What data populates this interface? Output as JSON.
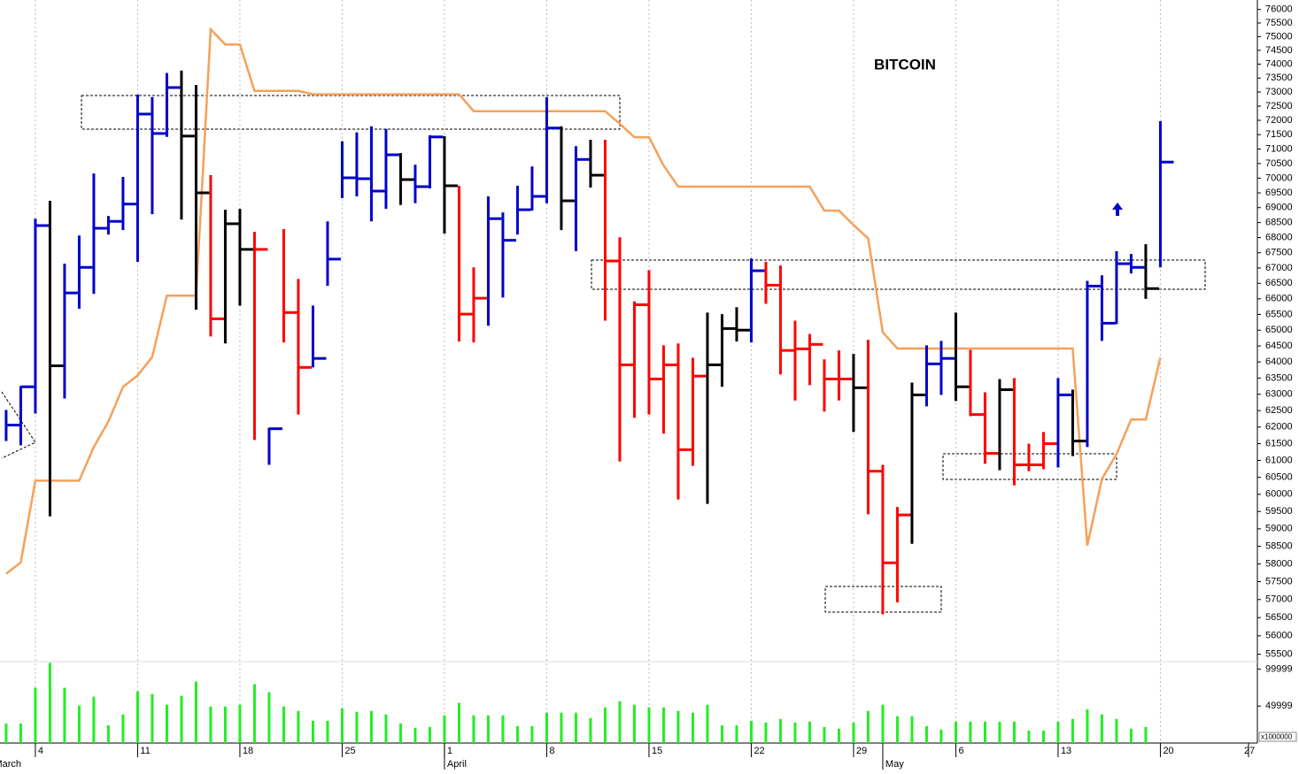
{
  "chart_data": {
    "type": "ohlc",
    "title": "BITCOIN",
    "log_y": true,
    "ylim": [
      55300,
      76350
    ],
    "yticks": [
      55500,
      56000,
      56500,
      57000,
      57500,
      58000,
      58500,
      59000,
      59500,
      60000,
      60500,
      61000,
      61500,
      62000,
      62500,
      63000,
      63500,
      64000,
      64500,
      65000,
      65500,
      66000,
      66500,
      67000,
      67500,
      68000,
      68500,
      69000,
      69500,
      70000,
      70500,
      71000,
      71500,
      72000,
      72500,
      73000,
      73500,
      74000,
      74500,
      75000,
      75500,
      76000
    ],
    "xlim": [
      -0.42,
      85.64
    ],
    "xticks": [
      {
        "value": 2,
        "label": "4"
      },
      {
        "value": 9,
        "label": "11"
      },
      {
        "value": 16,
        "label": "18"
      },
      {
        "value": 23,
        "label": "25"
      },
      {
        "value": 30,
        "label": "1"
      },
      {
        "value": 37,
        "label": "8"
      },
      {
        "value": 44,
        "label": "15"
      },
      {
        "value": 51,
        "label": "22"
      },
      {
        "value": 58,
        "label": "29"
      },
      {
        "value": 65,
        "label": "6"
      },
      {
        "value": 72,
        "label": "13"
      },
      {
        "value": 79,
        "label": "20"
      },
      {
        "value": 86,
        "label": "27"
      }
    ],
    "month_ticks": [
      {
        "value": -1,
        "label": "March"
      },
      {
        "value": 30,
        "label": "April"
      },
      {
        "value": 60,
        "label": "May"
      }
    ],
    "grid_x": true,
    "high": [
      62520,
      63250,
      68630,
      69230,
      67140,
      68070,
      70160,
      68720,
      70040,
      72910,
      72820,
      73680,
      73770,
      73250,
      70100,
      68930,
      68960,
      68190,
      61980,
      68280,
      66640,
      65780,
      68540,
      71270,
      71580,
      71790,
      71700,
      70860,
      70460,
      71480,
      71450,
      69740,
      67020,
      69380,
      68840,
      69740,
      70400,
      72820,
      71790,
      71100,
      71320,
      71320,
      68010,
      65920,
      66930,
      64520,
      64580,
      64130,
      65560,
      65510,
      65730,
      67310,
      67200,
      67080,
      65300,
      64880,
      64080,
      64360,
      64250,
      64690,
      60870,
      59630,
      63360,
      64520,
      64660,
      65560,
      64380,
      63060,
      63470,
      63500,
      61500,
      61850,
      63500,
      63140,
      66580,
      66760,
      67550,
      67460,
      67780,
      71970
    ],
    "low": [
      61580,
      61450,
      62410,
      59360,
      62870,
      65680,
      66160,
      68100,
      68250,
      67200,
      68780,
      71420,
      68600,
      65650,
      64800,
      64580,
      65780,
      61610,
      60870,
      64610,
      62380,
      63830,
      66420,
      69320,
      69380,
      68540,
      68960,
      69090,
      69150,
      69650,
      68130,
      64640,
      64610,
      65140,
      66040,
      68100,
      68900,
      69150,
      68250,
      67550,
      69680,
      65300,
      60970,
      62280,
      62380,
      61800,
      59850,
      60840,
      59720,
      63230,
      64640,
      64610,
      65840,
      63610,
      62810,
      63280,
      62470,
      62810,
      61850,
      59420,
      56590,
      56920,
      58570,
      62630,
      62980,
      62790,
      62330,
      60900,
      60710,
      60260,
      60680,
      60740,
      60790,
      61130,
      61400,
      64660,
      65190,
      66820,
      66000,
      67020
    ],
    "close": [
      62060,
      63230,
      68400,
      63880,
      66190,
      67020,
      68310,
      68540,
      69120,
      72220,
      71540,
      73160,
      71450,
      69500,
      65360,
      68460,
      67610,
      67610,
      61950,
      65560,
      63830,
      64110,
      67290,
      70010,
      69980,
      69560,
      70800,
      69950,
      69710,
      71420,
      69740,
      65510,
      66020,
      68630,
      67910,
      68930,
      69380,
      71730,
      69230,
      70640,
      70100,
      67230,
      63910,
      65810,
      63470,
      63910,
      61320,
      63560,
      63910,
      65050,
      65000,
      66910,
      66440,
      64360,
      64410,
      64550,
      63470,
      63470,
      63200,
      60680,
      58030,
      59400,
      62980,
      63940,
      64110,
      63230,
      62380,
      61210,
      63140,
      60870,
      60870,
      61500,
      62980,
      61580,
      66410,
      65220,
      67140,
      67020,
      66330,
      70550
    ],
    "colors": [
      "#0000cc",
      "#0000cc",
      "#0000cc",
      "#000000",
      "#0000cc",
      "#0000cc",
      "#0000cc",
      "#0000cc",
      "#0000cc",
      "#0000cc",
      "#0000cc",
      "#0000cc",
      "#000000",
      "#000000",
      "#ff0000",
      "#000000",
      "#000000",
      "#ff0000",
      "#0000cc",
      "#ff0000",
      "#ff0000",
      "#0000cc",
      "#0000cc",
      "#0000cc",
      "#0000cc",
      "#0000cc",
      "#0000cc",
      "#000000",
      "#0000cc",
      "#0000cc",
      "#000000",
      "#ff0000",
      "#ff0000",
      "#0000cc",
      "#0000cc",
      "#0000cc",
      "#0000cc",
      "#0000cc",
      "#000000",
      "#0000cc",
      "#000000",
      "#ff0000",
      "#ff0000",
      "#ff0000",
      "#ff0000",
      "#ff0000",
      "#ff0000",
      "#ff0000",
      "#000000",
      "#000000",
      "#000000",
      "#0000cc",
      "#ff0000",
      "#ff0000",
      "#ff0000",
      "#ff0000",
      "#ff0000",
      "#ff0000",
      "#000000",
      "#ff0000",
      "#ff0000",
      "#ff0000",
      "#000000",
      "#0000cc",
      "#0000cc",
      "#000000",
      "#ff0000",
      "#ff0000",
      "#000000",
      "#ff0000",
      "#ff0000",
      "#ff0000",
      "#0000cc",
      "#000000",
      "#0000cc",
      "#0000cc",
      "#0000cc",
      "#0000cc",
      "#000000",
      "#0000cc"
    ],
    "line": {
      "color": "#f5a05a",
      "values": [
        57720,
        58040,
        60400,
        60400,
        60400,
        60400,
        61400,
        62170,
        63230,
        63580,
        64160,
        66100,
        66100,
        66100,
        75270,
        74710,
        74710,
        73040,
        73040,
        73040,
        73040,
        72920,
        72920,
        72920,
        72920,
        72920,
        72920,
        72920,
        72920,
        72920,
        72920,
        72920,
        72320,
        72320,
        72320,
        72320,
        72320,
        72320,
        72320,
        72320,
        72320,
        72320,
        71880,
        71410,
        71410,
        70430,
        69710,
        69710,
        69710,
        69710,
        69710,
        69710,
        69710,
        69710,
        69710,
        69710,
        68900,
        68900,
        68420,
        67970,
        64930,
        64420,
        64420,
        64420,
        64420,
        64420,
        64420,
        64420,
        64420,
        64420,
        64420,
        64420,
        64420,
        64420,
        58520,
        60450,
        61190,
        62230,
        62230,
        64140
      ]
    },
    "volume": {
      "color": "#22ee22",
      "ylim": [
        0,
        110000
      ],
      "yticks": [
        49999,
        99999
      ],
      "unit_label": "x1000000",
      "values": [
        26500,
        26500,
        74700,
        108500,
        74700,
        50600,
        62700,
        24100,
        38600,
        69900,
        66300,
        51800,
        63900,
        83100,
        49400,
        49400,
        51800,
        79500,
        68700,
        49400,
        43400,
        30100,
        30100,
        47000,
        42200,
        43400,
        38600,
        26500,
        20500,
        21700,
        37400,
        54200,
        37400,
        37400,
        37400,
        22900,
        22900,
        41000,
        41000,
        41000,
        33700,
        48200,
        56600,
        51800,
        48200,
        48200,
        43400,
        41000,
        51800,
        24100,
        24100,
        30100,
        27700,
        32500,
        27700,
        28900,
        21700,
        19300,
        27700,
        43400,
        51800,
        36200,
        36200,
        22900,
        18100,
        28900,
        28900,
        28900,
        28900,
        28900,
        16900,
        16900,
        28900,
        32500,
        45800,
        38600,
        32500,
        19300,
        21700,
        null
      ]
    }
  }
}
